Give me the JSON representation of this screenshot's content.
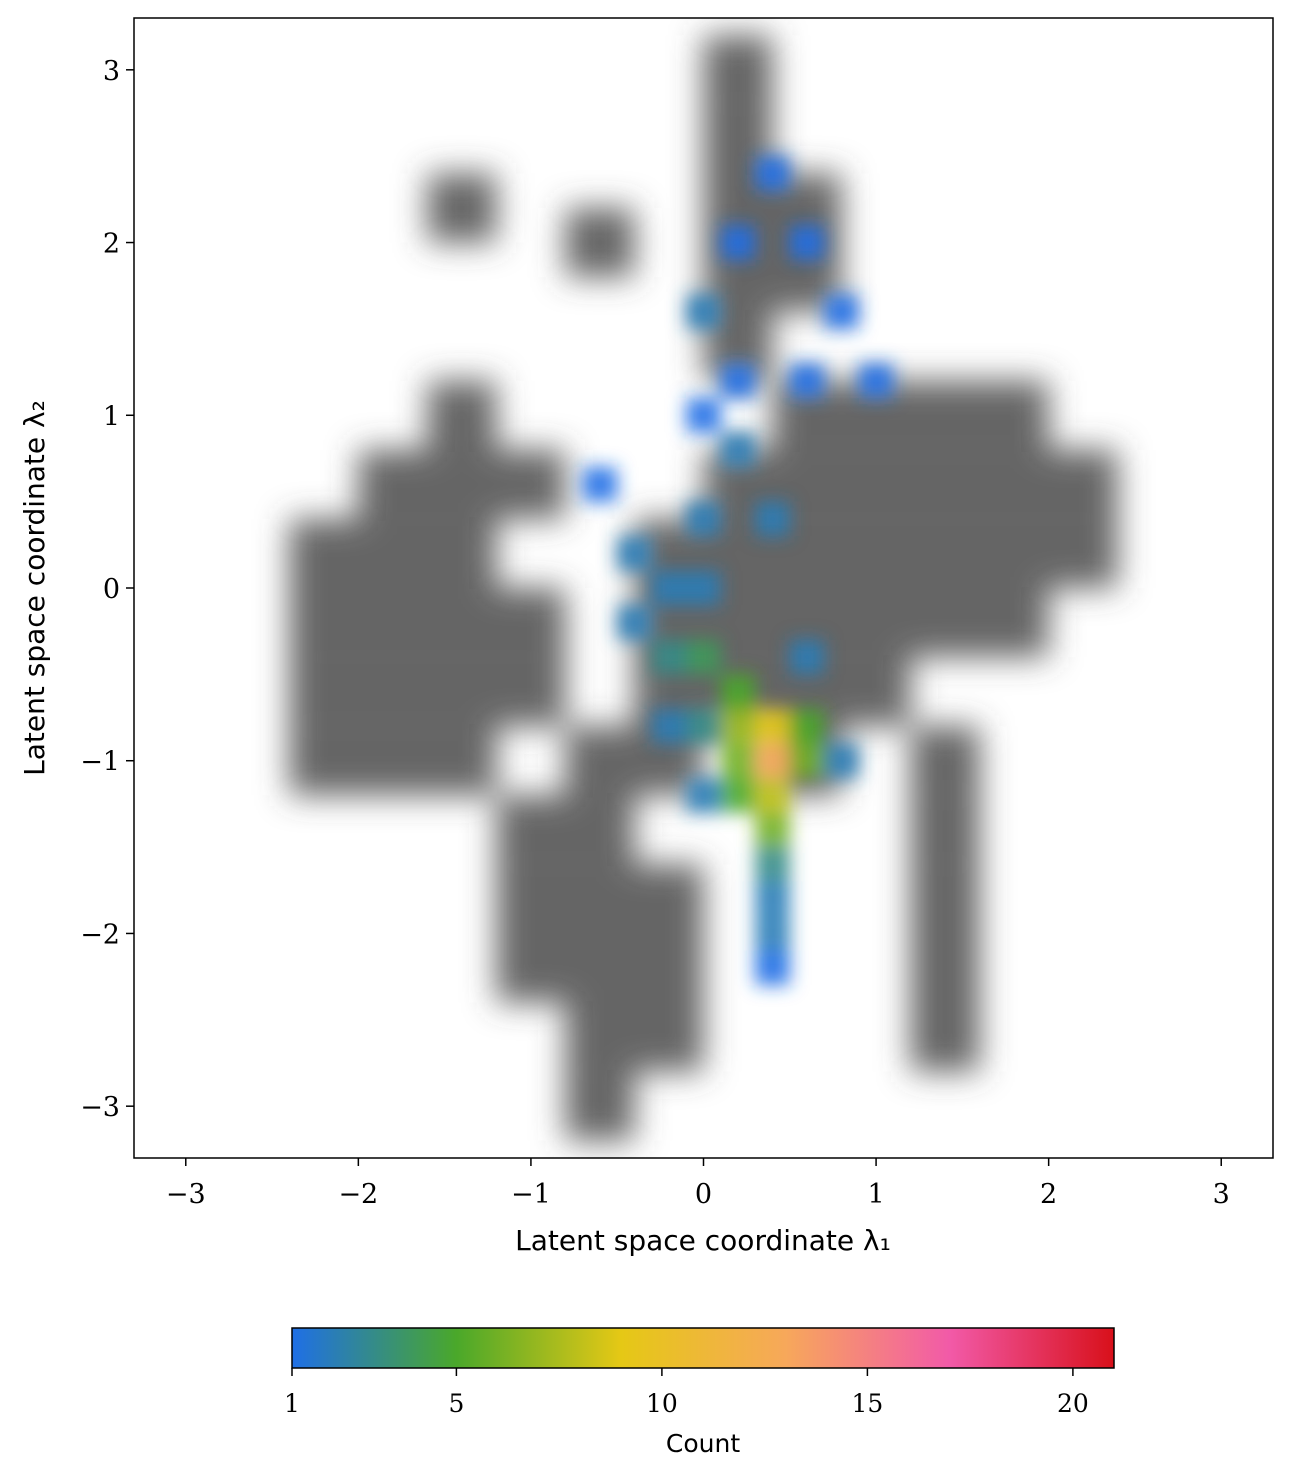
{
  "chart_data": {
    "type": "density",
    "xlabel": "Latent space coordinate λ₁",
    "ylabel": "Latent space coordinate λ₂",
    "xlim": [
      -3.3,
      3.3
    ],
    "ylim": [
      -3.3,
      3.3
    ],
    "xticks": [
      {
        "value": -3,
        "label": "−3"
      },
      {
        "value": -2,
        "label": "−2"
      },
      {
        "value": -1,
        "label": "−1"
      },
      0,
      1,
      2,
      3
    ],
    "yticks": [
      {
        "value": -3,
        "label": "−3"
      },
      {
        "value": -2,
        "label": "−2"
      },
      {
        "value": -1,
        "label": "−1"
      },
      0,
      1,
      2,
      3
    ],
    "background": {
      "color": "#4a4a4a",
      "x": [
        -2.2,
        -2.2,
        -2.2,
        -2.2,
        -1.8,
        -1.8,
        -1.8,
        -1.8,
        -1.8,
        -1.4,
        -1.4,
        -1.4,
        -1.4,
        -1.0,
        -1.0,
        -1.4,
        -1.4,
        -1.0,
        -1.0,
        -1.0,
        -0.6,
        -0.6,
        -0.6,
        -0.6,
        -0.6,
        -0.2,
        -0.2,
        -0.2,
        -0.6,
        -1.0,
        -0.2,
        -0.2,
        -0.2,
        -0.2,
        0.2,
        0.2,
        0.2,
        0.2,
        0.6,
        0.6,
        0.6,
        0.6,
        0.6,
        1.0,
        1.0,
        1.0,
        1.0,
        1.4,
        1.4,
        1.4,
        1.4,
        1.8,
        1.8,
        1.8,
        1.8,
        2.2,
        2.2,
        0.6,
        1.0,
        0.2,
        0.2,
        0.2,
        0.2,
        0.2,
        0.6,
        0.6,
        -0.6,
        -1.4,
        1.4,
        1.4,
        1.4,
        1.4,
        1.4
      ],
      "y": [
        -1.0,
        -0.6,
        -0.2,
        0.2,
        -1.0,
        -0.6,
        -0.2,
        0.2,
        0.6,
        -1.0,
        -0.6,
        -0.2,
        0.2,
        -0.6,
        -0.2,
        0.6,
        1.0,
        0.6,
        -1.4,
        -1.8,
        -1.0,
        -1.4,
        -1.8,
        -2.2,
        -2.6,
        -2.2,
        -2.6,
        -1.8,
        -3.0,
        -2.2,
        -1.0,
        -0.6,
        -0.2,
        0.2,
        -0.6,
        -0.2,
        0.2,
        0.6,
        -0.6,
        -1.0,
        -0.2,
        0.2,
        0.6,
        0.2,
        0.6,
        1.0,
        -0.2,
        0.2,
        0.6,
        1.0,
        -0.2,
        0.2,
        0.6,
        1.0,
        -0.2,
        0.2,
        0.6,
        1.0,
        -0.6,
        1.4,
        1.8,
        2.2,
        2.6,
        3.0,
        1.8,
        2.2,
        2.0,
        2.2,
        -1.0,
        -1.4,
        -1.8,
        -2.2,
        -2.6
      ]
    },
    "x": [
      0.4,
      0.4,
      0.2,
      0.4,
      0.4,
      0.2,
      0.6,
      0.2,
      0.0,
      0.2,
      0.6,
      0.4,
      0.4,
      0.4,
      0.4,
      0.0,
      0.0,
      -0.2,
      -0.2,
      0.0,
      -0.4,
      -0.6,
      0.0,
      0.2,
      0.0,
      0.2,
      0.0,
      0.2,
      0.4,
      0.6,
      0.8,
      0.6,
      1.0,
      0.4,
      -0.4,
      0.6,
      0.8,
      -0.2
    ],
    "y": [
      -1.0,
      -0.8,
      -0.8,
      -1.2,
      -1.4,
      -1.0,
      -1.0,
      -0.6,
      -0.4,
      -1.2,
      -0.8,
      -1.6,
      -1.8,
      -2.0,
      -2.2,
      -0.8,
      -1.2,
      -0.4,
      0.0,
      0.0,
      0.2,
      0.6,
      0.4,
      0.8,
      1.0,
      1.2,
      1.6,
      2.0,
      2.4,
      2.0,
      1.6,
      1.2,
      1.2,
      0.4,
      -0.2,
      -0.4,
      -1.0,
      -0.8
    ],
    "values": [
      13,
      9,
      7,
      8,
      6,
      6,
      6,
      5,
      4,
      5,
      5,
      3,
      2,
      2,
      1,
      3,
      2,
      3,
      2,
      2,
      2,
      1,
      2,
      2,
      1,
      1,
      2,
      1,
      1,
      1,
      1,
      1,
      1,
      2,
      2,
      2,
      2,
      2
    ],
    "colorbar": {
      "label": "Count",
      "lim": [
        1,
        21
      ],
      "ticks": [
        1,
        5,
        10,
        15,
        20
      ],
      "colors": [
        "#1f6fe6",
        "#4aa82a",
        "#e5c815",
        "#f7a85a",
        "#f25aa8",
        "#d8101a"
      ]
    }
  }
}
